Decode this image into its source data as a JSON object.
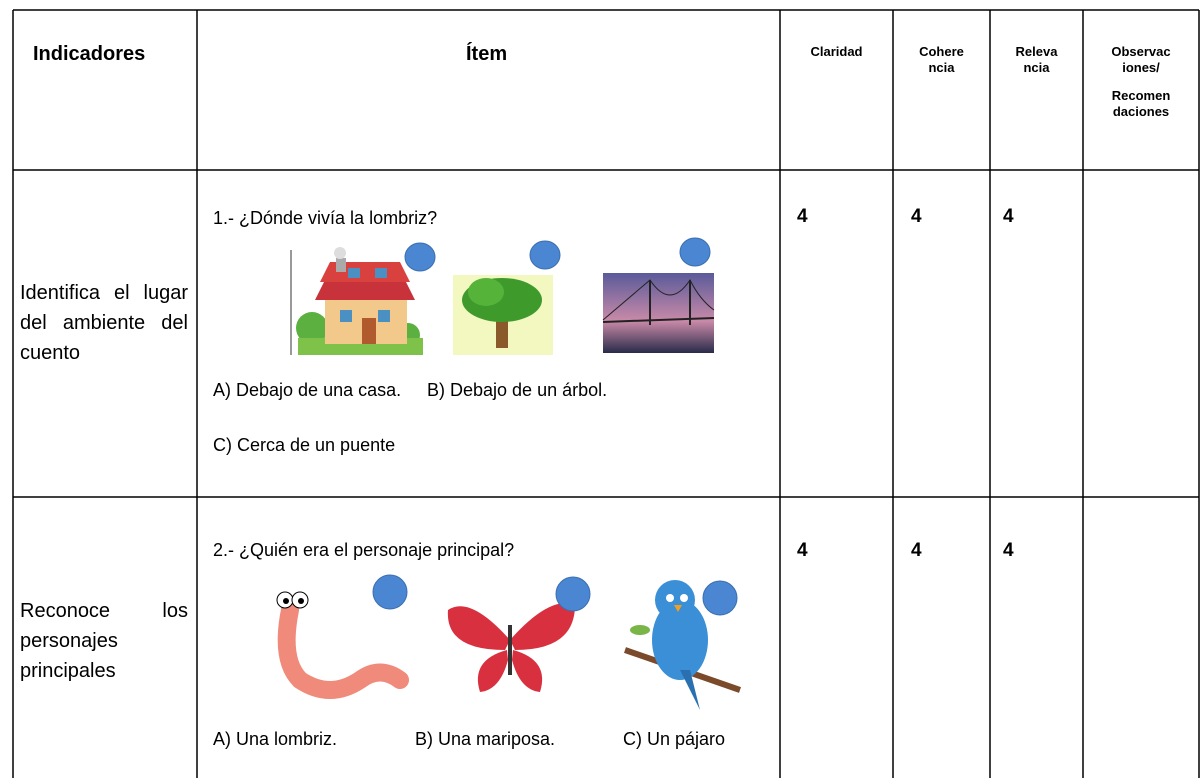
{
  "header": {
    "indicators": "Indicadores",
    "item": "Ítem",
    "clarity": [
      "Claridad"
    ],
    "coherence": [
      "Cohere",
      "ncia"
    ],
    "relevance": [
      "Releva",
      "ncia"
    ],
    "observations": [
      "Observac",
      "iones/",
      "Recomen",
      "daciones"
    ]
  },
  "rows": [
    {
      "indicator": "Identifica el lugar del ambiente del cuento",
      "question": "1.- ¿Dónde vivía la lombriz?",
      "options": [
        "A) Debajo de una casa.",
        "B) Debajo de un árbol.",
        "C) Cerca de un puente"
      ],
      "clarity": 4,
      "coherence": 4,
      "relevance": 4
    },
    {
      "indicator": "Reconoce los personajes principales",
      "question": "2.- ¿Quién era el personaje principal?",
      "options": [
        "A) Una lombriz.",
        "B) Una mariposa.",
        "C) Un pájaro"
      ],
      "clarity": 4,
      "coherence": 4,
      "relevance": 4
    }
  ]
}
